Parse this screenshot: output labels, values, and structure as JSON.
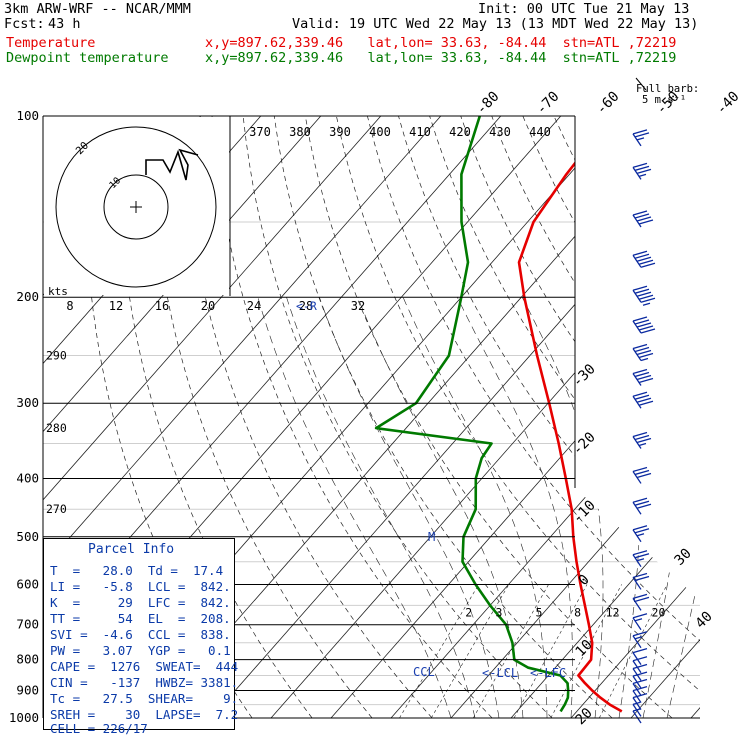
{
  "header": {
    "model": "3km ARW-WRF -- NCAR/MMM",
    "init": "Init: 00 UTC Tue 21 May 13",
    "fcst_label": "Fcst:",
    "fcst_hours": "43 h",
    "valid": "Valid: 19 UTC Wed 22 May 13 (13 MDT Wed 22 May 13)",
    "legend": [
      {
        "label": "Temperature",
        "info": "x,y=897.62,339.46   lat,lon= 33.63, -84.44  stn=ATL ,72219",
        "color": "#e60000"
      },
      {
        "label": "Dewpoint temperature",
        "info": "x,y=897.62,339.46   lat,lon= 33.63, -84.44  stn=ATL ,72219",
        "color": "#007a00"
      }
    ],
    "full_barb_label": "Full barb:",
    "full_barb_value": "5 m s⁻¹"
  },
  "parcel_info": {
    "title": "Parcel Info",
    "rows": [
      "T  =   28.0  Td =  17.4",
      "LI =   -5.8  LCL =  842.",
      "K  =     29  LFC =  842.",
      "TT =     54  EL  =  208.",
      "SVI =  -4.6  CCL =  838.",
      "PW =   3.07  YGP =   0.1",
      "CAPE =  1276  SWEAT=  444",
      "CIN =   -137  HWBZ= 3381.",
      "Tc =   27.5  SHEAR=    9.",
      "SREH =    30  LAPSE=  7.2",
      "CELL = 226/17"
    ]
  },
  "chart_data": {
    "type": "line",
    "subtype": "skew-t log-p sounding",
    "y_axis": {
      "quantity": "pressure",
      "unit": "hPa",
      "scale": "log",
      "range": [
        1000,
        100
      ],
      "ticks": [
        100,
        200,
        300,
        400,
        500,
        600,
        700,
        800,
        900,
        1000
      ]
    },
    "isotherm_labels": [
      -80,
      -70,
      -60,
      -50,
      -40,
      -30,
      -20,
      -10,
      0,
      10,
      20,
      30,
      40
    ],
    "theta_labels": [
      370,
      380,
      390,
      400,
      410,
      420,
      430,
      440
    ],
    "mixing_ratio_labels": [
      "2",
      "3",
      "5",
      "8",
      "12",
      "20"
    ],
    "dry_adiabat_labels": [
      {
        "text": "290",
        "p": 250
      },
      {
        "text": "280",
        "p": 330
      },
      {
        "text": "270",
        "p": 450
      }
    ],
    "hodograph": {
      "speed_unit": "kts",
      "speed_labels": [
        8,
        12,
        16,
        20,
        24,
        28,
        32
      ],
      "storm_motion_marker": "<-R"
    },
    "series": [
      {
        "name": "Temperature",
        "color": "#e60000",
        "p": [
          975,
          950,
          925,
          900,
          875,
          850,
          800,
          750,
          700,
          650,
          600,
          550,
          500,
          450,
          400,
          350,
          300,
          250,
          200,
          175,
          150,
          125,
          100
        ],
        "values": [
          27.5,
          24.5,
          21.9,
          19.5,
          17.2,
          15.0,
          14.8,
          12.5,
          9.3,
          5.8,
          2.0,
          -2.0,
          -6.2,
          -10.5,
          -16.0,
          -22.3,
          -29.8,
          -38.8,
          -49.5,
          -55.5,
          -59.0,
          -60.5,
          -61.5
        ]
      },
      {
        "name": "Dewpoint temperature",
        "color": "#007a00",
        "p": [
          975,
          950,
          925,
          900,
          875,
          850,
          825,
          800,
          750,
          700,
          650,
          600,
          550,
          500,
          450,
          400,
          370,
          350,
          330,
          300,
          250,
          200,
          175,
          150,
          125,
          100
        ],
        "values": [
          17.3,
          17.0,
          16.5,
          15.5,
          14.3,
          12.0,
          5.5,
          2.0,
          -0.8,
          -4.5,
          -10.0,
          -15.5,
          -21.0,
          -24.5,
          -26.5,
          -31.0,
          -33.0,
          -33.5,
          -55.0,
          -52.0,
          -53.5,
          -60.0,
          -64.0,
          -71.0,
          -78.0,
          -83.5
        ]
      }
    ],
    "parcel_markers": [
      {
        "label": "CCL",
        "p": 838
      },
      {
        "label": "<-LCL",
        "p": 842
      },
      {
        "label": "<-LFC",
        "p": 842
      },
      {
        "label": "M",
        "p": 500
      }
    ],
    "wind_barbs": {
      "p": [
        1000,
        975,
        950,
        925,
        900,
        875,
        850,
        825,
        800,
        750,
        700,
        650,
        600,
        550,
        500,
        450,
        400,
        350,
        300,
        275,
        250,
        225,
        200,
        175,
        150,
        125,
        110
      ],
      "speed_ms": [
        3,
        4,
        5,
        5,
        5,
        6,
        6,
        6,
        7,
        8,
        9,
        10,
        12,
        13,
        14,
        15,
        17,
        18,
        20,
        22,
        24,
        26,
        28,
        26,
        22,
        18,
        14
      ]
    }
  }
}
